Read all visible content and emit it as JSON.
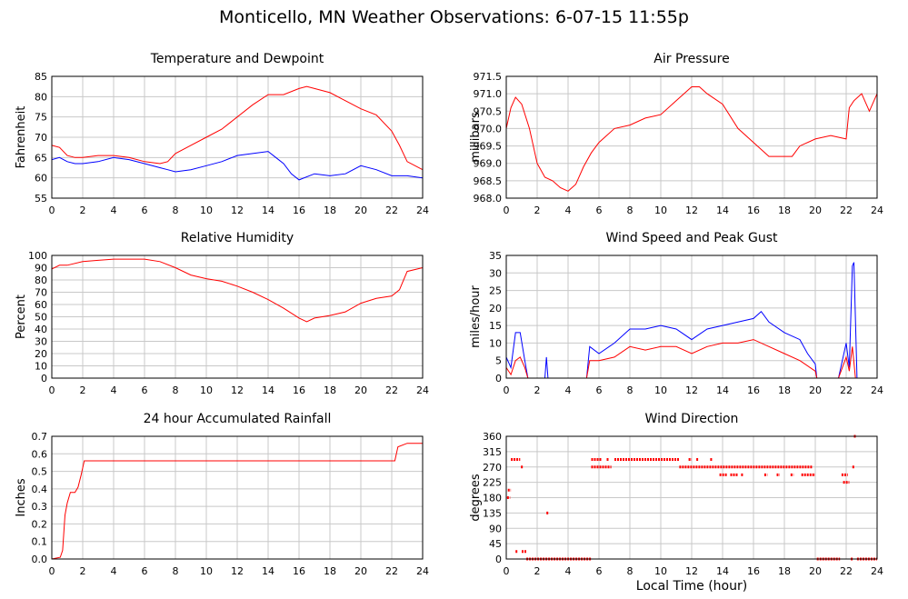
{
  "page_title": "Monticello, MN Weather Observations: 6-07-15 11:55p",
  "chart_data": [
    {
      "id": "temp",
      "type": "line",
      "title": "Temperature and Dewpoint",
      "ylabel": "Fahrenheit",
      "xlabel": "",
      "xlim": [
        0,
        24
      ],
      "ylim": [
        55,
        85
      ],
      "yticks": [
        55,
        60,
        65,
        70,
        75,
        80,
        85
      ],
      "xticks": [
        0,
        2,
        4,
        6,
        8,
        10,
        12,
        14,
        16,
        18,
        20,
        22,
        24
      ],
      "grid": true,
      "series": [
        {
          "color": "#ff0000",
          "x": [
            0,
            0.5,
            1,
            1.5,
            2,
            3,
            4,
            5,
            6,
            7,
            7.5,
            8,
            9,
            10,
            11,
            12,
            13,
            14,
            15,
            16,
            16.5,
            17,
            18,
            19,
            20,
            21,
            22,
            22.5,
            23,
            24
          ],
          "y": [
            68,
            67.5,
            65.5,
            65,
            65,
            65.5,
            65.5,
            65,
            64,
            63.5,
            64,
            66,
            68,
            70,
            72,
            75,
            78,
            80.5,
            80.5,
            82,
            82.5,
            82,
            81,
            79,
            77,
            75.5,
            71.5,
            68,
            64,
            62
          ]
        },
        {
          "color": "#0000ff",
          "x": [
            0,
            0.5,
            1,
            1.5,
            2,
            3,
            4,
            5,
            6,
            7,
            7.5,
            8,
            9,
            10,
            11,
            12,
            13,
            14,
            14.5,
            15,
            15.5,
            16,
            17,
            18,
            19,
            20,
            21,
            22,
            23,
            24
          ],
          "y": [
            64.5,
            65,
            64,
            63.5,
            63.5,
            64,
            65,
            64.5,
            63.5,
            62.5,
            62,
            61.5,
            62,
            63,
            64,
            65.5,
            66,
            66.5,
            65,
            63.5,
            61,
            59.5,
            61,
            60.5,
            61,
            63,
            62,
            60.5,
            60.5,
            60
          ]
        }
      ]
    },
    {
      "id": "pressure",
      "type": "line",
      "title": "Air Pressure",
      "ylabel": "millibars",
      "xlabel": "",
      "xlim": [
        0,
        24
      ],
      "ylim": [
        968.0,
        971.5
      ],
      "yticks": [
        "968.0",
        "968.5",
        "969.0",
        "969.5",
        "970.0",
        "970.5",
        "971.0",
        "971.5"
      ],
      "xticks": [
        0,
        2,
        4,
        6,
        8,
        10,
        12,
        14,
        16,
        18,
        20,
        22,
        24
      ],
      "grid": true,
      "series": [
        {
          "color": "#ff0000",
          "x": [
            0,
            0.3,
            0.6,
            1,
            1.5,
            2,
            2.5,
            3,
            3.5,
            4,
            4.5,
            5,
            5.5,
            6,
            7,
            8,
            9,
            10,
            11,
            12,
            12.5,
            13,
            14,
            15,
            16,
            17,
            18,
            18.5,
            19,
            20,
            21,
            22,
            22.2,
            22.5,
            23,
            23.5,
            24
          ],
          "y": [
            970.0,
            970.6,
            970.9,
            970.7,
            970.0,
            969.0,
            968.6,
            968.5,
            968.3,
            968.2,
            968.4,
            968.9,
            969.3,
            969.6,
            970.0,
            970.1,
            970.3,
            970.4,
            970.8,
            971.2,
            971.2,
            971.0,
            970.7,
            970.0,
            969.6,
            969.2,
            969.2,
            969.2,
            969.5,
            969.7,
            969.8,
            969.7,
            970.6,
            970.8,
            971.0,
            970.5,
            971.0
          ]
        }
      ]
    },
    {
      "id": "humidity",
      "type": "line",
      "title": "Relative Humidity",
      "ylabel": "Percent",
      "xlabel": "",
      "xlim": [
        0,
        24
      ],
      "ylim": [
        0,
        100
      ],
      "yticks": [
        0,
        10,
        20,
        30,
        40,
        50,
        60,
        70,
        80,
        90,
        100
      ],
      "xticks": [
        0,
        2,
        4,
        6,
        8,
        10,
        12,
        14,
        16,
        18,
        20,
        22,
        24
      ],
      "grid": true,
      "series": [
        {
          "color": "#ff0000",
          "x": [
            0,
            0.5,
            1,
            2,
            3,
            4,
            5,
            6,
            7,
            8,
            9,
            10,
            11,
            12,
            13,
            14,
            15,
            16,
            16.5,
            17,
            18,
            19,
            20,
            21,
            22,
            22.5,
            23,
            24
          ],
          "y": [
            89,
            92,
            92,
            95,
            96,
            97,
            97,
            97,
            95,
            90,
            84,
            81,
            79,
            75,
            70,
            64,
            57,
            49,
            46,
            49,
            51,
            54,
            61,
            65,
            67,
            72,
            87,
            90
          ]
        }
      ]
    },
    {
      "id": "wind",
      "type": "line",
      "title": "Wind Speed and Peak Gust",
      "ylabel": "miles/hour",
      "xlabel": "",
      "xlim": [
        0,
        24
      ],
      "ylim": [
        0,
        35
      ],
      "yticks": [
        0,
        5,
        10,
        15,
        20,
        25,
        30,
        35
      ],
      "xticks": [
        0,
        2,
        4,
        6,
        8,
        10,
        12,
        14,
        16,
        18,
        20,
        22,
        24
      ],
      "grid": true,
      "series": [
        {
          "color": "#0000ff",
          "x": [
            0,
            0.3,
            0.6,
            0.9,
            1.2,
            1.4,
            2.5,
            2.6,
            2.7,
            5.2,
            5.4,
            6,
            7,
            8,
            9,
            10,
            11,
            12,
            13,
            14,
            15,
            16,
            16.5,
            17,
            18,
            19,
            19.5,
            20,
            20.1,
            21.5,
            22,
            22.2,
            22.4,
            22.5,
            22.7,
            24
          ],
          "y": [
            6,
            3,
            13,
            13,
            5,
            0,
            0,
            6,
            0,
            0,
            9,
            7,
            10,
            14,
            14,
            15,
            14,
            11,
            14,
            15,
            16,
            17,
            19,
            16,
            13,
            11,
            7,
            4,
            0,
            0,
            10,
            3,
            32,
            33,
            0,
            0
          ]
        },
        {
          "color": "#ff0000",
          "x": [
            0,
            0.3,
            0.6,
            0.9,
            1.2,
            1.4,
            5.2,
            5.4,
            6,
            7,
            8,
            9,
            10,
            11,
            12,
            13,
            14,
            15,
            16,
            17,
            18,
            19,
            20,
            20.1,
            21.5,
            22,
            22.2,
            22.4,
            22.6,
            24
          ],
          "y": [
            3,
            1,
            5,
            6,
            3,
            0,
            0,
            5,
            5,
            6,
            9,
            8,
            9,
            9,
            7,
            9,
            10,
            10,
            11,
            9,
            7,
            5,
            2,
            0,
            0,
            6,
            2,
            9,
            0,
            0
          ]
        }
      ]
    },
    {
      "id": "rain",
      "type": "line",
      "title": "24 hour Accumulated Rainfall",
      "ylabel": "Inches",
      "xlabel": "",
      "xlim": [
        0,
        24
      ],
      "ylim": [
        0,
        0.7
      ],
      "yticks": [
        "0.0",
        "0.1",
        "0.2",
        "0.3",
        "0.4",
        "0.5",
        "0.6",
        "0.7"
      ],
      "xticks": [
        0,
        2,
        4,
        6,
        8,
        10,
        12,
        14,
        16,
        18,
        20,
        22,
        24
      ],
      "grid": true,
      "series": [
        {
          "color": "#ff0000",
          "x": [
            0,
            0.55,
            0.7,
            0.85,
            1.0,
            1.2,
            1.5,
            1.7,
            1.9,
            2.1,
            22.2,
            22.4,
            23,
            24
          ],
          "y": [
            0,
            0.01,
            0.05,
            0.25,
            0.32,
            0.38,
            0.38,
            0.41,
            0.48,
            0.56,
            0.56,
            0.64,
            0.66,
            0.66
          ]
        }
      ]
    },
    {
      "id": "winddir",
      "type": "scatter",
      "title": "Wind Direction",
      "ylabel": "degrees",
      "xlabel": "Local Time (hour)",
      "xlim": [
        0,
        24
      ],
      "ylim": [
        0,
        360
      ],
      "yticks": [
        0,
        45,
        90,
        135,
        180,
        225,
        270,
        315,
        360
      ],
      "xticks": [
        0,
        2,
        4,
        6,
        8,
        10,
        12,
        14,
        16,
        18,
        20,
        22,
        24
      ],
      "grid": true,
      "series": [
        {
          "color": "#ff0000",
          "segments": [
            {
              "x0": 0.05,
              "x1": 0.25,
              "y": 180
            },
            {
              "x0": 0.1,
              "x1": 0.3,
              "y": 202
            },
            {
              "x0": 0.3,
              "x1": 0.9,
              "y": 292
            },
            {
              "x0": 0.95,
              "x1": 0.95,
              "y": 270
            },
            {
              "x0": 0.6,
              "x1": 0.6,
              "y": 22
            },
            {
              "x0": 1.0,
              "x1": 1.3,
              "y": 22
            },
            {
              "x0": 1.3,
              "x1": 5.5,
              "y": 0
            },
            {
              "x0": 2.6,
              "x1": 2.6,
              "y": 135
            },
            {
              "x0": 5.5,
              "x1": 6.8,
              "y": 270
            },
            {
              "x0": 5.5,
              "x1": 6.2,
              "y": 292
            },
            {
              "x0": 6.5,
              "x1": 6.5,
              "y": 292
            },
            {
              "x0": 7.0,
              "x1": 11.2,
              "y": 292
            },
            {
              "x0": 11.2,
              "x1": 19.8,
              "y": 270
            },
            {
              "x0": 11.8,
              "x1": 12.0,
              "y": 292
            },
            {
              "x0": 12.3,
              "x1": 12.3,
              "y": 292
            },
            {
              "x0": 13.2,
              "x1": 13.2,
              "y": 292
            },
            {
              "x0": 13.8,
              "x1": 14.3,
              "y": 247
            },
            {
              "x0": 14.5,
              "x1": 15.0,
              "y": 247
            },
            {
              "x0": 15.2,
              "x1": 15.3,
              "y": 247
            },
            {
              "x0": 16.7,
              "x1": 16.9,
              "y": 247
            },
            {
              "x0": 17.5,
              "x1": 17.7,
              "y": 247
            },
            {
              "x0": 18.4,
              "x1": 18.6,
              "y": 247
            },
            {
              "x0": 19.1,
              "x1": 20.0,
              "y": 247
            },
            {
              "x0": 20.1,
              "x1": 21.6,
              "y": 0
            },
            {
              "x0": 21.7,
              "x1": 22.1,
              "y": 247
            },
            {
              "x0": 21.8,
              "x1": 22.2,
              "y": 225
            },
            {
              "x0": 22.4,
              "x1": 22.4,
              "y": 270
            },
            {
              "x0": 22.3,
              "x1": 22.3,
              "y": 0
            },
            {
              "x0": 22.5,
              "x1": 22.6,
              "y": 360
            },
            {
              "x0": 22.7,
              "x1": 24.0,
              "y": 0
            }
          ]
        }
      ]
    }
  ]
}
